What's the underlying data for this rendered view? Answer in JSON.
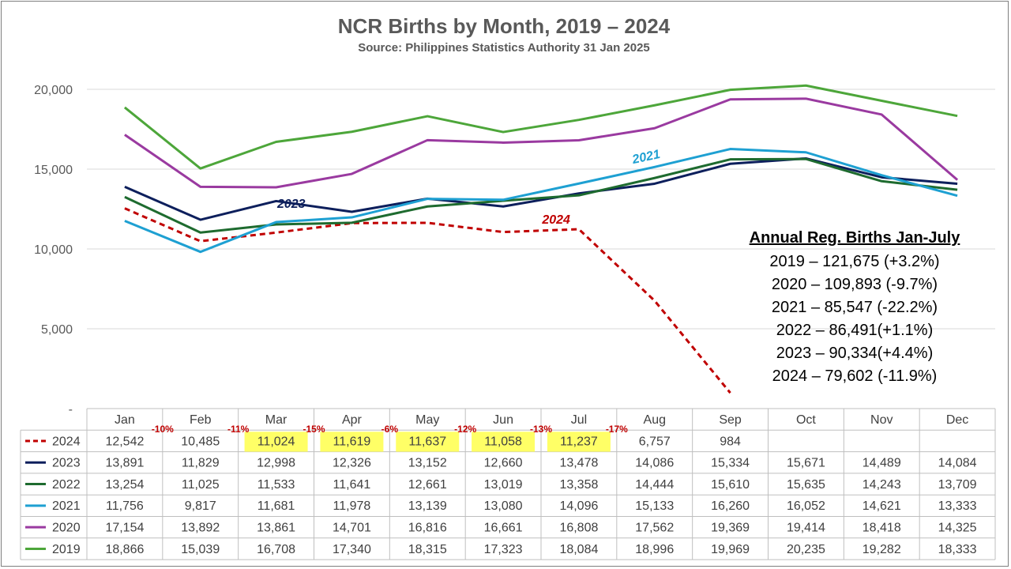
{
  "title": "NCR Births by Month, 2019 – 2024",
  "subtitle": "Source: Philippines Statistics Authority 31 Jan 2025",
  "annual_box": {
    "heading": "Annual Reg. Births Jan-July",
    "rows": [
      "2019 – 121,675  (+3.2%)",
      "2020 – 109,893 (-9.7%)",
      "2021 – 85,547 (-22.2%)",
      "2022 – 86,491(+1.1%)",
      "2023 – 90,334(+4.4%)",
      "2024 – 79,602 (-11.9%)"
    ]
  },
  "colors": {
    "2024": "#c00000",
    "2023": "#0d1f5c",
    "2022": "#1e6b2f",
    "2021": "#1ea0d2",
    "2020": "#9a3aa0",
    "2019": "#4da63a",
    "highlight": "#ffff66"
  },
  "chart_data": {
    "type": "line",
    "categories": [
      "Jan",
      "Feb",
      "Mar",
      "Apr",
      "May",
      "Jun",
      "Jul",
      "Aug",
      "Sep",
      "Oct",
      "Nov",
      "Dec"
    ],
    "ylim": [
      0,
      20000
    ],
    "yticks": [
      "-",
      "5,000",
      "10,000",
      "15,000",
      "20,000"
    ],
    "grid": true,
    "series": [
      {
        "name": "2024",
        "dashed": true,
        "values": [
          12542,
          10485,
          11024,
          11619,
          11637,
          11058,
          11237,
          6757,
          984,
          null,
          null,
          null
        ],
        "cells": [
          "12,542",
          "10,485",
          "11,024",
          "11,619",
          "11,637",
          "11,058",
          "11,237",
          "6,757",
          "984",
          "",
          "",
          ""
        ]
      },
      {
        "name": "2023",
        "values": [
          13891,
          11829,
          12998,
          12326,
          13152,
          12660,
          13478,
          14086,
          15334,
          15671,
          14489,
          14084
        ],
        "cells": [
          "13,891",
          "11,829",
          "12,998",
          "12,326",
          "13,152",
          "12,660",
          "13,478",
          "14,086",
          "15,334",
          "15,671",
          "14,489",
          "14,084"
        ]
      },
      {
        "name": "2022",
        "values": [
          13254,
          11025,
          11533,
          11641,
          12661,
          13019,
          13358,
          14444,
          15610,
          15635,
          14243,
          13709
        ],
        "cells": [
          "13,254",
          "11,025",
          "11,533",
          "11,641",
          "12,661",
          "13,019",
          "13,358",
          "14,444",
          "15,610",
          "15,635",
          "14,243",
          "13,709"
        ]
      },
      {
        "name": "2021",
        "values": [
          11756,
          9817,
          11681,
          11978,
          13139,
          13080,
          14096,
          15133,
          16260,
          16052,
          14621,
          13333
        ],
        "cells": [
          "11,756",
          "9,817",
          "11,681",
          "11,978",
          "13,139",
          "13,080",
          "14,096",
          "15,133",
          "16,260",
          "16,052",
          "14,621",
          "13,333"
        ]
      },
      {
        "name": "2020",
        "values": [
          17154,
          13892,
          13861,
          14701,
          16816,
          16661,
          16808,
          17562,
          19369,
          19414,
          18418,
          14325
        ],
        "cells": [
          "17,154",
          "13,892",
          "13,861",
          "14,701",
          "16,816",
          "16,661",
          "16,808",
          "17,562",
          "19,369",
          "19,414",
          "18,418",
          "14,325"
        ]
      },
      {
        "name": "2019",
        "values": [
          18866,
          15039,
          16708,
          17340,
          18315,
          17323,
          18084,
          18996,
          19969,
          20235,
          19282,
          18333
        ],
        "cells": [
          "18,866",
          "15,039",
          "16,708",
          "17,340",
          "18,315",
          "17,323",
          "18,084",
          "18,996",
          "19,969",
          "20,235",
          "19,282",
          "18,333"
        ]
      }
    ],
    "changes_2024": [
      "-10%",
      "-11%",
      "-15%",
      "-6%",
      "-12%",
      "-13%",
      "-17%"
    ],
    "highlighted_2024": [
      "Mar",
      "Apr",
      "May",
      "Jun",
      "Jul"
    ],
    "annotations": [
      {
        "text": "2023",
        "series": "2023"
      },
      {
        "text": "2021",
        "series": "2021"
      },
      {
        "text": "2024",
        "series": "2024"
      }
    ]
  }
}
